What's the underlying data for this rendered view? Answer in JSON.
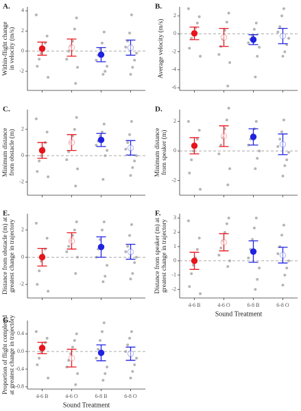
{
  "chart_data": [
    {
      "type": "dotplot",
      "panel": "A.",
      "ylabel": [
        "Within-flight change",
        "in velocity (m/s)"
      ],
      "categories": [
        null,
        null,
        null,
        null
      ],
      "colors": [
        "#e8141b",
        "#e8141b",
        "#1f22e0",
        "#1f22e0"
      ],
      "filled": [
        true,
        false,
        true,
        false
      ],
      "means": [
        0.25,
        0.35,
        -0.35,
        0.35
      ],
      "errors": [
        0.65,
        0.85,
        0.7,
        0.75
      ],
      "hline": 0,
      "points": [
        [
          3.6,
          1.5,
          0.8,
          0.3,
          -0.2,
          -0.8,
          -1.5,
          -2.6
        ],
        [
          3.3,
          2.2,
          1.0,
          0.5,
          0,
          -0.8,
          -1.6,
          -3.2
        ],
        [
          1.9,
          0.8,
          0.2,
          -0.4,
          -0.9,
          -1.5,
          -2.0,
          -2.3
        ],
        [
          3.6,
          1.8,
          1.0,
          0.4,
          -0.2,
          -0.9,
          -1.6,
          -2.3
        ]
      ],
      "ylim": [
        -3.9,
        4.4
      ],
      "yticks": [
        -2,
        0,
        2,
        4
      ]
    },
    {
      "type": "dotplot",
      "panel": "B.",
      "ylabel": [
        "Average velocity (m/s)"
      ],
      "categories": [
        null,
        null,
        null,
        null
      ],
      "colors": [
        "#e8141b",
        "#e8141b",
        "#1f22e0",
        "#1f22e0"
      ],
      "filled": [
        true,
        false,
        true,
        false
      ],
      "means": [
        0.05,
        -0.4,
        -0.65,
        -0.25
      ],
      "errors": [
        0.7,
        1.0,
        0.55,
        0.85
      ],
      "hline": 0,
      "points": [
        [
          2.8,
          1.9,
          1.2,
          0.6,
          0,
          -0.5,
          -1.6,
          -2.5
        ],
        [
          2.3,
          1.3,
          0.4,
          -0.6,
          -1.4,
          -2.3,
          -3.2,
          -5.8
        ],
        [
          1.2,
          0.5,
          -0.2,
          -0.6,
          -1.0,
          -1.5,
          -2.5,
          -4.8
        ],
        [
          2.8,
          2.0,
          0.8,
          0.2,
          -0.5,
          -1.2,
          -2.0,
          -2.5
        ]
      ],
      "ylim": [
        -6.3,
        3
      ],
      "yticks": [
        -6,
        -4,
        -2,
        0,
        2
      ]
    },
    {
      "type": "dotplot",
      "panel": "C.",
      "ylabel": [
        "Minimum distance",
        "from obstacle (m)"
      ],
      "categories": [
        null,
        null,
        null,
        null
      ],
      "colors": [
        "#e8141b",
        "#e8141b",
        "#1f22e0",
        "#1f22e0"
      ],
      "filled": [
        true,
        false,
        true,
        false
      ],
      "means": [
        0.4,
        1.0,
        1.2,
        0.6
      ],
      "errors": [
        0.6,
        0.6,
        0.5,
        0.55
      ],
      "hline": 0,
      "points": [
        [
          2.8,
          1.8,
          1.0,
          0.6,
          0,
          -0.4,
          -1.2,
          -1.6
        ],
        [
          2.9,
          2.0,
          1.5,
          1.0,
          0.3,
          -0.3,
          -1.0,
          -2.3
        ],
        [
          2.4,
          1.8,
          1.5,
          1.1,
          0.8,
          0.4,
          0,
          -1.8
        ],
        [
          2.6,
          1.6,
          1.0,
          0.5,
          0,
          -0.4,
          -0.9,
          -1.5
        ]
      ],
      "ylim": [
        -3,
        3.5
      ],
      "yticks": [
        -2,
        0,
        2
      ]
    },
    {
      "type": "dotplot",
      "panel": "D.",
      "ylabel": [
        "Minimum distance",
        "from speaker (m)"
      ],
      "categories": [
        null,
        null,
        null,
        null
      ],
      "colors": [
        "#e8141b",
        "#e8141b",
        "#1f22e0",
        "#1f22e0"
      ],
      "filled": [
        true,
        false,
        true,
        false
      ],
      "means": [
        0.35,
        1.0,
        0.95,
        0.45
      ],
      "errors": [
        0.55,
        0.7,
        0.55,
        0.7
      ],
      "hline": 0,
      "points": [
        [
          2.0,
          1.4,
          0.8,
          0.3,
          0,
          -0.6,
          -1.5,
          -2.6
        ],
        [
          2.9,
          2.1,
          1.5,
          0.9,
          0.4,
          -0.2,
          -1.2,
          -2.3
        ],
        [
          2.0,
          1.5,
          1.1,
          0.8,
          0.4,
          0,
          -0.5,
          -1.2
        ],
        [
          2.1,
          1.3,
          0.8,
          0.3,
          -0.1,
          -0.6,
          -1.0,
          -1.7
        ]
      ],
      "ylim": [
        -3,
        2.8
      ],
      "yticks": [
        -2,
        0,
        2
      ]
    },
    {
      "type": "dotplot",
      "panel": "E.",
      "ylabel": [
        "Distance from obstacle (m) at",
        "greatest change in trajectory"
      ],
      "categories": [
        null,
        null,
        null,
        null
      ],
      "colors": [
        "#e8141b",
        "#e8141b",
        "#1f22e0",
        "#1f22e0"
      ],
      "filled": [
        true,
        false,
        true,
        false
      ],
      "means": [
        0.0,
        1.2,
        0.75,
        0.4
      ],
      "errors": [
        0.65,
        0.6,
        0.75,
        0.55
      ],
      "hline": 0,
      "points": [
        [
          2.5,
          1.4,
          0.6,
          0.2,
          -0.3,
          -1.0,
          -2.0,
          -2.5
        ],
        [
          2.6,
          2.0,
          1.6,
          1.2,
          0.8,
          0.4,
          0,
          -1.2
        ],
        [
          2.6,
          2.0,
          1.3,
          0.6,
          0,
          -0.6,
          -1.4,
          -1.8
        ],
        [
          2.4,
          1.6,
          0.8,
          0.4,
          0,
          -0.4,
          -1.2,
          -1.6
        ]
      ],
      "ylim": [
        -3,
        3.2
      ],
      "yticks": [
        -2,
        0,
        2
      ]
    },
    {
      "type": "dotplot",
      "panel": "F.",
      "ylabel": [
        "Distance from speaker (m) at",
        "greatest change in trajectory"
      ],
      "xlabel": "Sound Treatment",
      "categories": [
        "4-6 B",
        "4-6 O",
        "6-8 B",
        "6-8 O"
      ],
      "colors": [
        "#e8141b",
        "#e8141b",
        "#1f22e0",
        "#1f22e0"
      ],
      "filled": [
        true,
        false,
        true,
        false
      ],
      "means": [
        0.0,
        1.3,
        0.65,
        0.4
      ],
      "errors": [
        0.6,
        0.6,
        0.75,
        0.55
      ],
      "hline": 0,
      "points": [
        [
          2.8,
          1.6,
          0.8,
          0.2,
          -0.3,
          -0.9,
          -1.8,
          -2.3
        ],
        [
          3.0,
          2.6,
          2.0,
          1.4,
          0.9,
          0.4,
          0,
          -0.4
        ],
        [
          3.0,
          2.3,
          1.5,
          0.8,
          0.2,
          -0.5,
          -1.3,
          -2.0
        ],
        [
          2.5,
          1.8,
          1.0,
          0.5,
          0,
          -0.5,
          -1.0,
          -1.7
        ]
      ],
      "ylim": [
        -2.6,
        3.3
      ],
      "yticks": [
        -2,
        -1,
        0,
        1,
        2,
        3
      ]
    },
    {
      "type": "dotplot",
      "panel": "G.",
      "ylabel": [
        "Proportion of flight completed",
        "at greatest change in trajectory"
      ],
      "xlabel": "Sound Treatment",
      "categories": [
        "4-6 B",
        "4-6 O",
        "6-8 B",
        "6-8 O"
      ],
      "colors": [
        "#e8141b",
        "#e8141b",
        "#1f22e0",
        "#1f22e0"
      ],
      "filled": [
        true,
        false,
        true,
        false
      ],
      "means": [
        0.08,
        -0.15,
        -0.03,
        -0.05
      ],
      "errors": [
        0.13,
        0.2,
        0.18,
        0.15
      ],
      "hline": 0,
      "points": [
        [
          0.45,
          0.3,
          0.2,
          0.1,
          0,
          -0.15,
          -0.3,
          -0.6
        ],
        [
          0.4,
          0.25,
          0.1,
          -0.05,
          -0.2,
          -0.35,
          -0.5,
          -0.75
        ],
        [
          0.65,
          0.45,
          0.25,
          0.05,
          -0.15,
          -0.35,
          -0.5,
          -0.65
        ],
        [
          0.45,
          0.3,
          0.15,
          0,
          -0.15,
          -0.3,
          -0.45,
          -0.6
        ]
      ],
      "ylim": [
        -0.85,
        0.7
      ],
      "yticks": [
        {
          "value": -0.8,
          "label": "-0.8"
        },
        {
          "value": -0.4,
          "label": "-0.4"
        },
        {
          "value": 0,
          "label": "0.0"
        },
        {
          "value": 0.4,
          "label": "0.4"
        }
      ]
    }
  ]
}
